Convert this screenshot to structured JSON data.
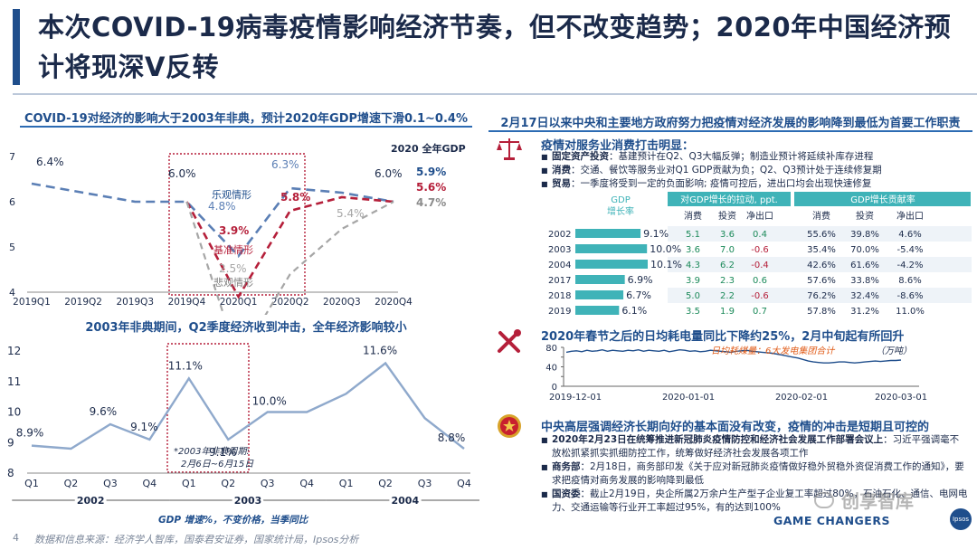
{
  "title": "本次COVID-19病毒疫情影响经济节奏，但不改变趋势；2020年中国经济预计将现深V反转",
  "left": {
    "chart1": {
      "header": "COVID-19对经济的影响大于2003年非典，预计2020年GDP增速下滑0.1~0.4%",
      "legend_title": "2020 全年GDP",
      "x_labels": [
        "2019Q1",
        "2019Q2",
        "2019Q3",
        "2019Q4",
        "2020Q1",
        "2020Q2",
        "2020Q3",
        "2020Q4"
      ],
      "y_ticks": [
        "4",
        "5",
        "6",
        "7"
      ],
      "series": [
        {
          "name": "乐观情形",
          "values": [
            6.4,
            6.2,
            6.0,
            6.0,
            4.8,
            6.3,
            6.2,
            6.0
          ],
          "color": "#5b7fb5",
          "total": "5.9%"
        },
        {
          "name": "基准情形",
          "values": [
            null,
            null,
            null,
            6.0,
            3.9,
            5.8,
            6.1,
            6.0
          ],
          "color": "#b51f3a",
          "total": "5.6%"
        },
        {
          "name": "悲观情形",
          "values": [
            null,
            null,
            null,
            6.0,
            2.5,
            4.4,
            5.4,
            6.0
          ],
          "color": "#a6a6a6",
          "total": "4.7%"
        }
      ],
      "annotations": {
        "a64": "6.4%",
        "a60": "6.0%",
        "a48": "4.8%",
        "a63": "6.3%",
        "a39": "3.9%",
        "a58": "5.8%",
        "a25": "2.5%",
        "a54": "5.4%",
        "a60b": "6.0%"
      }
    },
    "chart2": {
      "header": "2003年非典期间，Q2季度经济收到冲击，全年经济影响较小",
      "quarters": [
        "Q1",
        "Q2",
        "Q3",
        "Q4",
        "Q1",
        "Q2",
        "Q3",
        "Q4",
        "Q1",
        "Q2",
        "Q3",
        "Q4"
      ],
      "years": [
        "2002",
        "2003",
        "2004"
      ],
      "y_ticks": [
        "8",
        "9",
        "10",
        "11",
        "12"
      ],
      "values": [
        8.9,
        8.8,
        9.6,
        9.1,
        11.1,
        9.1,
        10.0,
        10.0,
        10.6,
        11.6,
        9.8,
        8.8
      ],
      "labels": {
        "l0": "8.9%",
        "l2": "9.6%",
        "l3": "9.1%",
        "l4": "11.1%",
        "l5": "9.1%",
        "l6": "10.0%",
        "l9": "11.6%",
        "l11": "8.8%"
      },
      "box_note_1": "*2003年非典周期:",
      "box_note_2": "2月6日~6月15日",
      "caption": "GDP 增速%，不变价格，当季同比"
    }
  },
  "right": {
    "header": "2月17日以来中央和主要地方政府努力把疫情对经济发展的影响降到最低为首要工作职责",
    "s1": {
      "title": "疫情对服务业消费打击明显：",
      "bullets": [
        {
          "k": "固定资产投资",
          "v": "：基建预计在Q2、Q3大幅反弹；制造业预计将延续补库存进程"
        },
        {
          "k": "消费",
          "v": "：交通、餐饮等服务业对Q1 GDP贡献为负；Q2、Q3预计处于连续修复期"
        },
        {
          "k": "贸易",
          "v": "：一季度将受到一定的负面影响; 疫情可控后，进出口均会出现快速修复"
        }
      ]
    },
    "table": {
      "gdp_label_1": "GDP",
      "gdp_label_2": "增长率",
      "group1": "对GDP增长的拉动, ppt.",
      "group2": "GDP增长贡献率",
      "cols": [
        "消费",
        "投资",
        "净出口",
        "消费",
        "投资",
        "净出口"
      ],
      "rows": [
        {
          "year": "2002",
          "gdp": 9.1,
          "gdp_label": "9.1%",
          "c": [
            "5.1",
            "3.6",
            "0.4",
            "55.6%",
            "39.8%",
            "4.6%"
          ]
        },
        {
          "year": "2003",
          "gdp": 10.0,
          "gdp_label": "10.0%",
          "c": [
            "3.6",
            "7.0",
            "-0.6",
            "35.4%",
            "70.0%",
            "-5.4%"
          ]
        },
        {
          "year": "2004",
          "gdp": 10.1,
          "gdp_label": "10.1%",
          "c": [
            "4.3",
            "6.2",
            "-0.4",
            "42.6%",
            "61.6%",
            "-4.2%"
          ]
        },
        {
          "year": "2017",
          "gdp": 6.9,
          "gdp_label": "6.9%",
          "c": [
            "3.9",
            "2.3",
            "0.6",
            "57.6%",
            "33.8%",
            "8.6%"
          ]
        },
        {
          "year": "2018",
          "gdp": 6.7,
          "gdp_label": "6.7%",
          "c": [
            "5.0",
            "2.2",
            "-0.6",
            "76.2%",
            "32.4%",
            "-8.6%"
          ]
        },
        {
          "year": "2019",
          "gdp": 6.1,
          "gdp_label": "6.1%",
          "c": [
            "3.5",
            "1.9",
            "0.7",
            "57.8%",
            "31.2%",
            "11.0%"
          ]
        }
      ]
    },
    "s2": {
      "title": "2020年春节之后的日均耗电量同比下降约25%，2月中旬起有所回升",
      "legend": "日均耗煤量：6大发电集团合计",
      "unit": "（万吨）",
      "y_ticks": [
        "0",
        "20",
        "40",
        "60",
        "80"
      ],
      "x_labels": [
        "2019-12-01",
        "2020-01-01",
        "2020-02-01",
        "2020-03-01"
      ]
    },
    "s3": {
      "title": "中央高层强调经济长期向好的基本面没有改变，疫情的冲击是短期且可控的",
      "bullets": [
        {
          "k": "2020年2月23日在统筹推进新冠肺炎疫情防控和经济社会发展工作部署会议上",
          "v": "：习近平强调毫不放松抓紧抓实抓细防控工作，统筹做好经济社会发展各项工作"
        },
        {
          "k": "商务部",
          "v": "：2月18日，商务部印发《关于应对新冠肺炎疫情做好稳外贸稳外资促消费工作的通知》，要求把疫情对商务发展的影响降到最低"
        },
        {
          "k": "国资委",
          "v": "：截止2月19日，央企所属2万余户生产型子企业复工率超过80%，石油石化、通信、电网电力、交通运输等行业开工率超过95%，有的达到100%"
        }
      ]
    }
  },
  "footer": {
    "page": "4",
    "source": "数据和信息来源：经济学人智库，国泰君安证券，国家统计局，Ipsos分析",
    "brand": "GAME CHANGERS",
    "logo": "Ipsos",
    "watermark": "创享智库"
  },
  "colors": {
    "navy": "#1f4e8c",
    "red": "#b51f3a",
    "teal": "#3fb3b8",
    "grey": "#a6a6a6"
  }
}
